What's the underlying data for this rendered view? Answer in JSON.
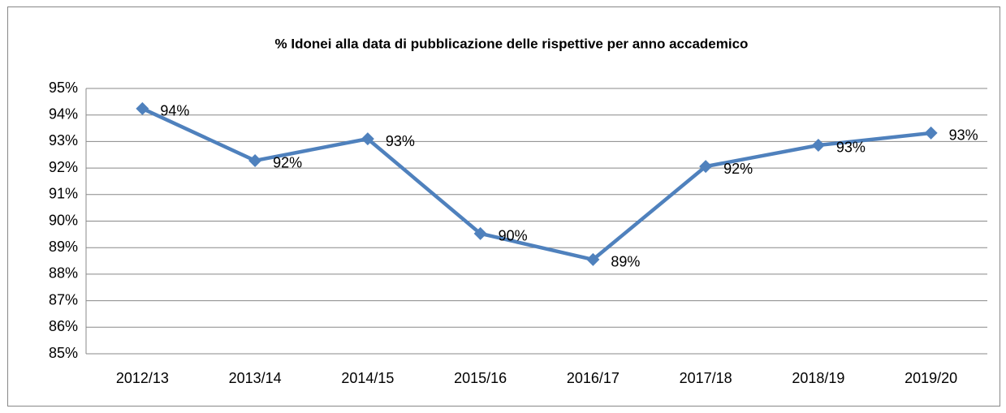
{
  "chart_data": {
    "type": "line",
    "title": "% Idonei alla data di pubblicazione delle rispettive per anno accademico",
    "categories": [
      "2012/13",
      "2013/14",
      "2014/15",
      "2015/16",
      "2016/17",
      "2017/18",
      "2018/19",
      "2019/20"
    ],
    "series": [
      {
        "color": "#4f81bd",
        "values": [
          94.24,
          92.28,
          93.1,
          89.53,
          88.55,
          92.06,
          92.86,
          93.32
        ],
        "value_labels": [
          "94%",
          "92%",
          "93%",
          "90%",
          "89%",
          "92%",
          "93%",
          "93%"
        ]
      }
    ],
    "ylim": [
      85,
      95
    ],
    "yticks": [
      {
        "value": 85,
        "label": "85%"
      },
      {
        "value": 86,
        "label": "86%"
      },
      {
        "value": 87,
        "label": "87%"
      },
      {
        "value": 88,
        "label": "88%"
      },
      {
        "value": 89,
        "label": "89%"
      },
      {
        "value": 90,
        "label": "90%"
      },
      {
        "value": 91,
        "label": "91%"
      },
      {
        "value": 92,
        "label": "92%"
      },
      {
        "value": 93,
        "label": "93%"
      },
      {
        "value": 94,
        "label": "94%"
      },
      {
        "value": 95,
        "label": "95%"
      }
    ],
    "grid": true
  }
}
